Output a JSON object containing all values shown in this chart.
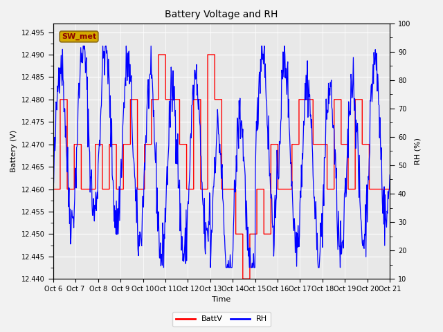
{
  "title": "Battery Voltage and RH",
  "xlabel": "Time",
  "ylabel_left": "Battery (V)",
  "ylabel_right": "RH (%)",
  "annotation": "SW_met",
  "legend_labels": [
    "BattV",
    "RH"
  ],
  "legend_colors": [
    "red",
    "blue"
  ],
  "left_ylim": [
    12.44,
    12.497
  ],
  "right_ylim": [
    10,
    100
  ],
  "left_yticks": [
    12.44,
    12.445,
    12.45,
    12.455,
    12.46,
    12.465,
    12.47,
    12.475,
    12.48,
    12.485,
    12.49,
    12.495
  ],
  "right_yticks": [
    10,
    20,
    30,
    40,
    50,
    60,
    70,
    80,
    90,
    100
  ],
  "xtick_labels": [
    "Oct 6",
    "Oct 7",
    "Oct 8",
    "Oct 9",
    "Oct 10",
    "Oct 11",
    "Oct 12",
    "Oct 13",
    "Oct 14",
    "Oct 15",
    "Oct 16",
    "Oct 17",
    "Oct 18",
    "Oct 19",
    "Oct 20",
    "Oct 21"
  ],
  "fig_bg_color": "#f2f2f2",
  "plot_bg_color": "#e8e8e8",
  "grid_color": "#ffffff",
  "annot_bg": "#d4aa00",
  "annot_fg": "#8b0000",
  "annot_border": "#8b6914",
  "batt_step_values": [
    12.46,
    12.48,
    12.46,
    12.47,
    12.46,
    12.46,
    12.47,
    12.46,
    12.47,
    12.46,
    12.47,
    12.48,
    12.46,
    12.47,
    12.48,
    12.49,
    12.48,
    12.48,
    12.47,
    12.46,
    12.48,
    12.46,
    12.49,
    12.48,
    12.46,
    12.46,
    12.45,
    12.44,
    12.45,
    12.46,
    12.45,
    12.47,
    12.46,
    12.46,
    12.47,
    12.48,
    12.48,
    12.47,
    12.47,
    12.46,
    12.48,
    12.47,
    12.46,
    12.48,
    12.47,
    12.46
  ],
  "rh_seed": 42,
  "n_points": 720
}
